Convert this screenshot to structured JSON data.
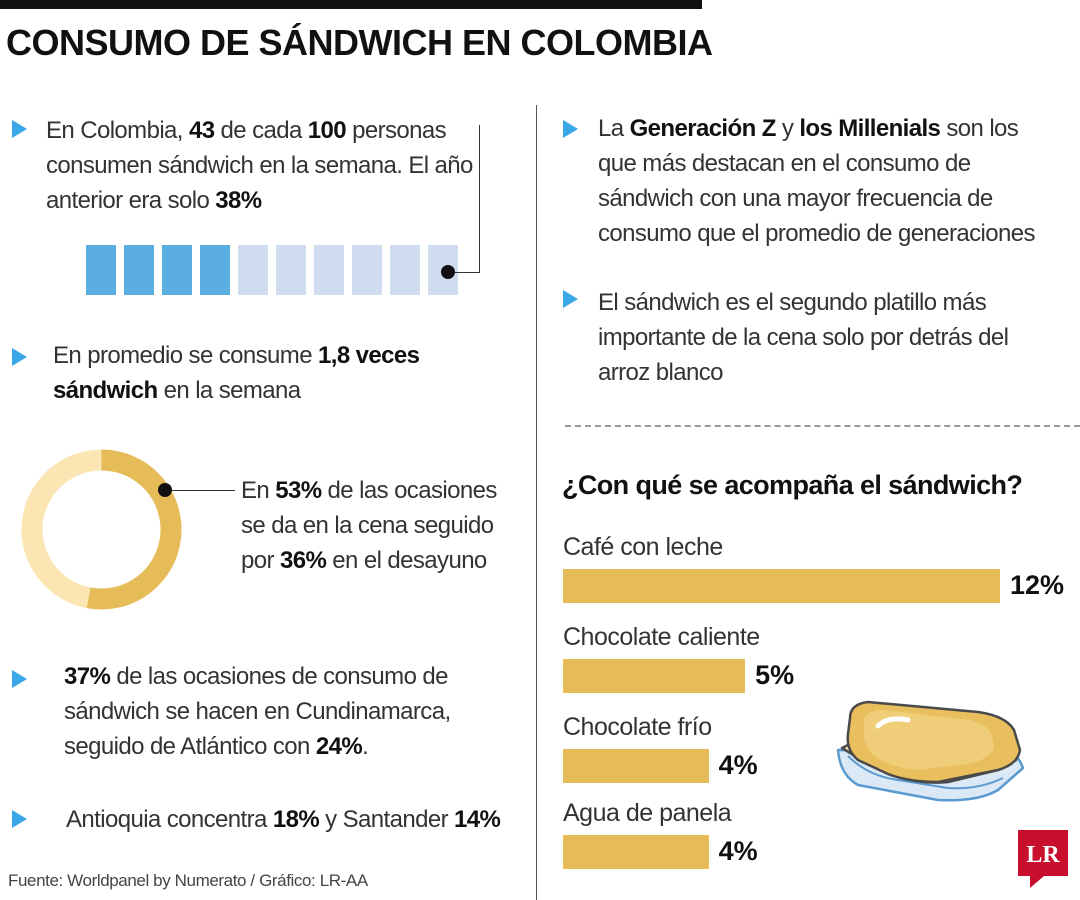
{
  "title": "CONSUMO DE SÁNDWICH EN COLOMBIA",
  "facts": {
    "weekly": {
      "p1": "En Colombia, ",
      "b1": "43",
      "p2": " de cada ",
      "b2": "100",
      "p3": " personas consumen sándwich en la semana. El año anterior era solo ",
      "b3": "38%"
    },
    "frequency": {
      "p1": "En promedio se consume ",
      "b1": "1,8 veces sándwich",
      "p2": " en la semana"
    },
    "occasions": {
      "p1": "En ",
      "b1": "53%",
      "p2": " de las ocasiones se da en la cena seguido por ",
      "b2": "36%",
      "p3": " en el desayuno"
    },
    "regions": {
      "b1": "37%",
      "p1": " de las ocasiones de consumo de sándwich se hacen en Cundinamarca, seguido de Atlántico con  ",
      "b2": "24%",
      "p2": "."
    },
    "antioquia": {
      "p1": "Antioquia concentra ",
      "b1": "18%",
      "p2": " y Santander ",
      "b2": "14%"
    },
    "generations": {
      "p1": "La ",
      "b1": "Generación Z",
      "p2": " y ",
      "b2": "los Millenials",
      "p3": " son los que más destacan en el consumo de sándwich con una mayor frecuencia de consumo que el promedio de generaciones"
    },
    "dinner": {
      "p1": "El sándwich es el segundo platillo más importante de la cena solo por detrás del arroz blanco"
    }
  },
  "source": "Fuente: Worldpanel by Numerato / Gráfico: LR-AA",
  "logo_text": "LR",
  "colors": {
    "accent_blue": "#3aa7e6",
    "person_active": "#5aaee0",
    "person_inactive": "#d0dcef",
    "gold": "#e6bc58",
    "gold_light": "#fbe6b3",
    "logo_red": "#c8102e"
  },
  "icons": [
    "triangle-bullet-icon",
    "person-icon",
    "sandwich-illustration",
    "lr-logo"
  ],
  "chart_data": [
    {
      "type": "pictogram",
      "total": 10,
      "highlighted": 4
    },
    {
      "type": "pie",
      "donut": true,
      "slices": [
        {
          "value": 53,
          "color": "#e6bc58"
        },
        {
          "value": 47,
          "color": "#fbe6b3"
        }
      ]
    },
    {
      "type": "bar",
      "orientation": "horizontal",
      "title": "¿Con qué se acompaña el sándwich?",
      "categories": [
        "Café con leche",
        "Chocolate caliente",
        "Chocolate frío",
        "Agua de panela"
      ],
      "values": [
        12,
        5,
        4,
        4
      ],
      "value_labels": [
        "12%",
        "5%",
        "4%",
        "4%"
      ],
      "xlim": [
        0,
        12
      ],
      "color": "#e6bc58",
      "grid": false
    }
  ]
}
